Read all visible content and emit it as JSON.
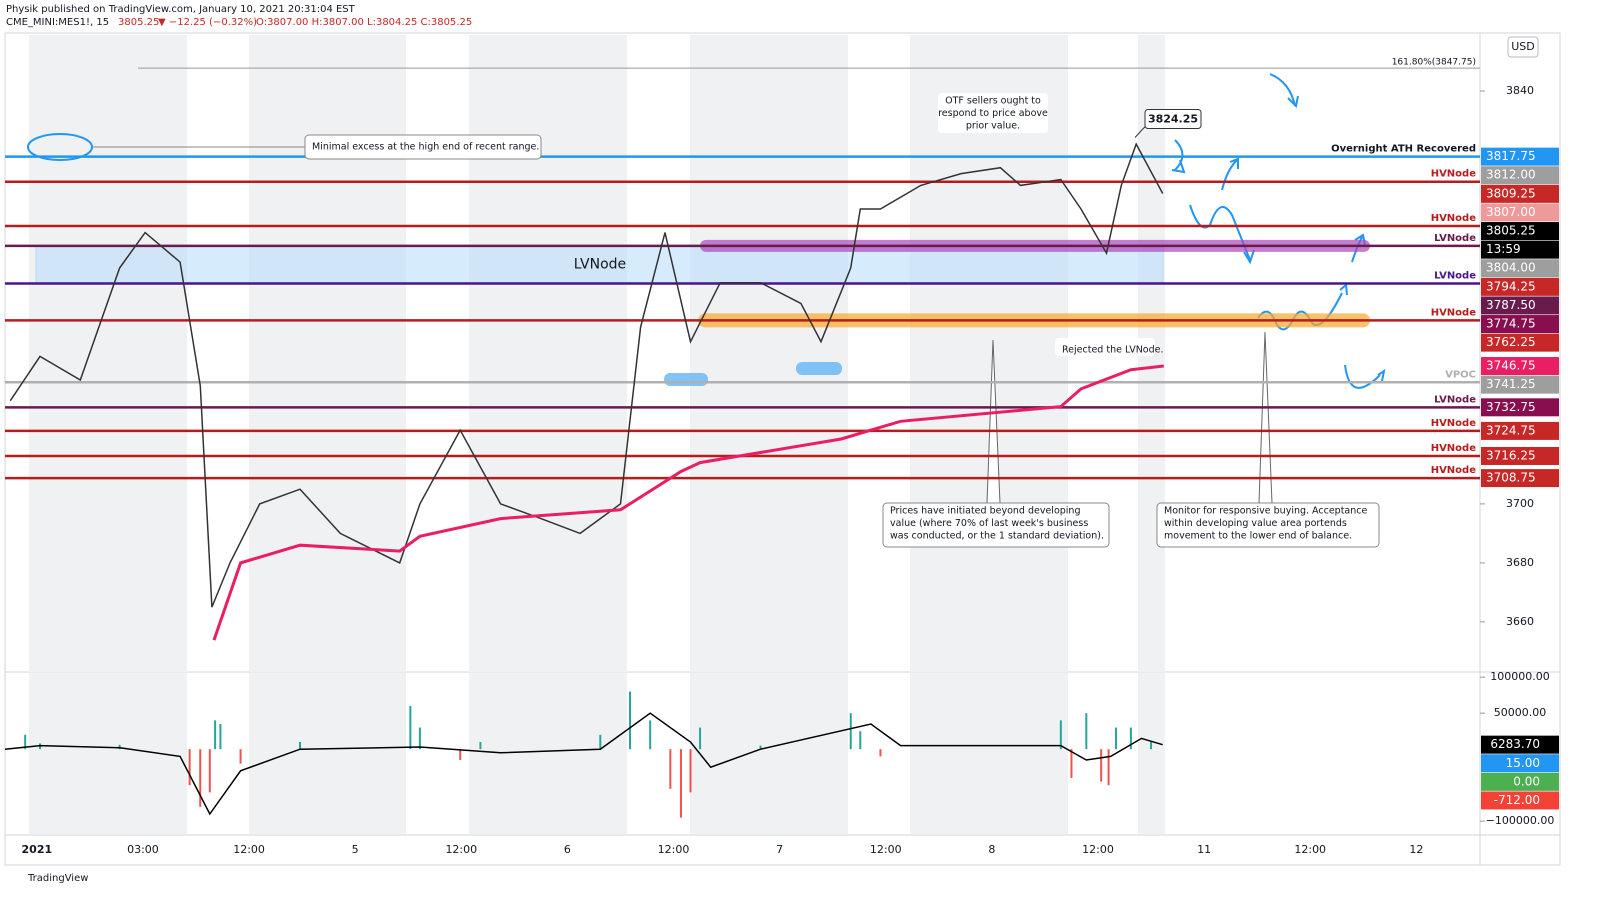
{
  "header": {
    "publisher": "Physik published on TradingView.com, January 10, 2021 20:31:04 EST",
    "symbol": "CME_MINI:MES1!, 15",
    "last": "3805.25",
    "change": "▼ −12.25 (−0.32%)",
    "ohlc": "O:3807.00 H:3807.00 L:3804.25 C:3805.25"
  },
  "footer": "TradingView",
  "chart_data": [
    {
      "type": "line",
      "currency": "USD",
      "xlim": [
        -0.3,
        13.6
      ],
      "x_labels": [
        "2021",
        "03:00",
        "12:00",
        "5",
        "12:00",
        "6",
        "12:00",
        "7",
        "12:00",
        "8",
        "12:00",
        "11",
        "12:00",
        "12"
      ],
      "ylim": [
        3643,
        3859
      ],
      "yticks": [
        3660,
        3680,
        3700,
        3840
      ],
      "x": [
        -0.25,
        0.03,
        0.41,
        0.78,
        1.02,
        1.35,
        1.54,
        1.65,
        1.82,
        2.1,
        2.48,
        2.86,
        3.42,
        3.61,
        3.99,
        4.37,
        4.75,
        5.12,
        5.5,
        5.69,
        5.92,
        6.16,
        6.44,
        6.82,
        7.2,
        7.39,
        7.67,
        7.76,
        7.95,
        8.33,
        8.71,
        9.08,
        9.27,
        9.65,
        9.84,
        10.08,
        10.22,
        10.36,
        10.61
      ],
      "values": [
        3735,
        3750,
        3742,
        3780,
        3792,
        3782,
        3740,
        3665,
        3680,
        3700,
        3705,
        3690,
        3680,
        3700,
        3725,
        3700,
        3695,
        3690,
        3700,
        3760,
        3792,
        3755,
        3775,
        3775,
        3768,
        3755,
        3780,
        3800,
        3800,
        3808,
        3812,
        3814,
        3808,
        3810,
        3800,
        3785,
        3808,
        3822,
        3805.25
      ],
      "color": "#333333",
      "vwap": {
        "color": "#e91e63",
        "x": [
          1.67,
          1.92,
          2.48,
          3.42,
          3.61,
          4.37,
          5.5,
          6.07,
          6.25,
          7.58,
          8.14,
          9.65,
          9.84,
          10.31,
          10.62
        ],
        "values": [
          3653.8,
          3680,
          3686,
          3684,
          3689,
          3695,
          3698,
          3711,
          3714,
          3722,
          3728,
          3733,
          3739,
          3745.5,
          3746.75
        ]
      },
      "fib": {
        "label": "161.80%(3847.75)",
        "value": 3847.75
      },
      "levels": [
        {
          "label": "Overnight ATH Recovered",
          "value": 3817.75,
          "color": "#2196f3"
        },
        {
          "label": "HVNode",
          "value": 3809.25,
          "color": "#b71c1c"
        },
        {
          "label": "HVNode",
          "value": 3794.25,
          "color": "#b71c1c"
        },
        {
          "label": "LVNode",
          "value": 3787.5,
          "color": "#6a1b4d"
        },
        {
          "label": "LVNode",
          "value": 3774.75,
          "color": "#4a148c"
        },
        {
          "label": "HVNode",
          "value": 3762.25,
          "color": "#b71c1c"
        },
        {
          "label": "VPOC",
          "value": 3741.25,
          "color": "#b0b0b0"
        },
        {
          "label": "LVNode",
          "value": 3732.75,
          "color": "#6a1b4d"
        },
        {
          "label": "HVNode",
          "value": 3724.75,
          "color": "#b71c1c"
        },
        {
          "label": "HVNode",
          "value": 3716.25,
          "color": "#b71c1c"
        },
        {
          "label": "HVNode",
          "value": 3708.75,
          "color": "#b71c1c"
        }
      ],
      "zone": {
        "label": "LVNode",
        "range": [
          3774.75,
          3787.5
        ]
      },
      "peak": {
        "value": 3824.25
      },
      "price_tags": [
        {
          "value": 3817.75,
          "label": "3817.75",
          "color": "#2196f3"
        },
        {
          "value": 3812,
          "label": "3812.00",
          "color": "#9e9e9e"
        },
        {
          "value": 3809.25,
          "label": "3809.25",
          "color": "#c62828"
        },
        {
          "value": 3807,
          "label": "3807.00",
          "color": "#ef9a9a"
        },
        {
          "value": 3805.25,
          "label": "3805.25",
          "color": "#000000"
        },
        {
          "label": "13:59",
          "color": "#000000"
        },
        {
          "value": 3804,
          "label": "3804.00",
          "color": "#9e9e9e"
        },
        {
          "value": 3794.25,
          "label": "3794.25",
          "color": "#c62828"
        },
        {
          "value": 3787.5,
          "label": "3787.50",
          "color": "#6a1b4d"
        },
        {
          "value": 3774.75,
          "label": "3774.75",
          "color": "#880e4f"
        },
        {
          "value": 3762.25,
          "label": "3762.25",
          "color": "#c62828"
        },
        {
          "value": 3746.75,
          "label": "3746.75",
          "color": "#e91e63"
        },
        {
          "value": 3741.25,
          "label": "3741.25",
          "color": "#9e9e9e"
        },
        {
          "value": 3732.75,
          "label": "3732.75",
          "color": "#880e4f"
        },
        {
          "value": 3724.75,
          "label": "3724.75",
          "color": "#c62828"
        },
        {
          "value": 3716.25,
          "label": "3716.25",
          "color": "#c62828"
        },
        {
          "value": 3708.75,
          "label": "3708.75",
          "color": "#c62828"
        }
      ],
      "annotations": [
        {
          "lines": [
            "Minimal excess at the high end of recent range."
          ]
        },
        {
          "lines": [
            "OTF sellers ought to",
            "respond to price above",
            "prior value."
          ]
        },
        {
          "lines": [
            "Rejected the LVNode."
          ]
        },
        {
          "lines": [
            "Prices have initiated beyond developing",
            "value (where 70% of last week's business",
            "was conducted, or the 1 standard deviation)."
          ]
        },
        {
          "lines": [
            "Monitor for responsive buying. Acceptance",
            "within developing value area portends",
            "movement to the lower end of balance."
          ]
        }
      ]
    },
    {
      "type": "bar",
      "xlim": [
        -0.3,
        13.6
      ],
      "ylim": [
        -115000,
        103000
      ],
      "yticks": [
        {
          "value": 100000,
          "label": "100000.00"
        },
        {
          "value": 50000,
          "label": "50000.00"
        },
        {
          "value": -100000,
          "label": "−100000.00"
        }
      ],
      "x": [
        -0.11,
        0.03,
        0.78,
        1.44,
        1.54,
        1.63,
        1.68,
        1.73,
        1.92,
        2.48,
        3.52,
        3.61,
        3.99,
        4.18,
        5.31,
        5.59,
        5.78,
        5.97,
        6.07,
        6.16,
        6.25,
        6.82,
        7.67,
        7.76,
        7.95,
        9.65,
        9.75,
        9.89,
        10.03,
        10.1,
        10.17,
        10.31,
        10.5
      ],
      "values": [
        20000,
        8000,
        6000,
        -50000,
        -80000,
        -60000,
        40000,
        35000,
        -20000,
        10000,
        60000,
        30000,
        -15000,
        10000,
        20000,
        80000,
        40000,
        -55000,
        -95000,
        -60000,
        30000,
        5000,
        50000,
        25000,
        -10000,
        40000,
        -40000,
        50000,
        -45000,
        -50000,
        30000,
        30000,
        10000
      ],
      "up_color": "#26a69a",
      "down_color": "#ef5350",
      "line": {
        "color": "#000000",
        "x": [
          -0.3,
          0.03,
          0.78,
          1.35,
          1.63,
          1.92,
          2.48,
          3.61,
          4.37,
          5.31,
          5.78,
          6.16,
          6.35,
          6.82,
          7.86,
          8.14,
          9.65,
          9.89,
          10.12,
          10.41,
          10.61
        ],
        "values": [
          0,
          5000,
          2000,
          -10000,
          -90000,
          -30000,
          0,
          3000,
          -5000,
          0,
          50000,
          10000,
          -25000,
          0,
          35000,
          5000,
          5000,
          -15000,
          -10000,
          15000,
          6283.7
        ]
      },
      "tags": [
        {
          "value": 6283.7,
          "label": "6283.70",
          "color": "#000000"
        },
        {
          "value": 15,
          "label": "15.00",
          "color": "#2196f3"
        },
        {
          "value": 0,
          "label": "0.00",
          "color": "#4caf50"
        },
        {
          "value": -712,
          "label": "-712.00",
          "color": "#f44336"
        }
      ]
    }
  ]
}
